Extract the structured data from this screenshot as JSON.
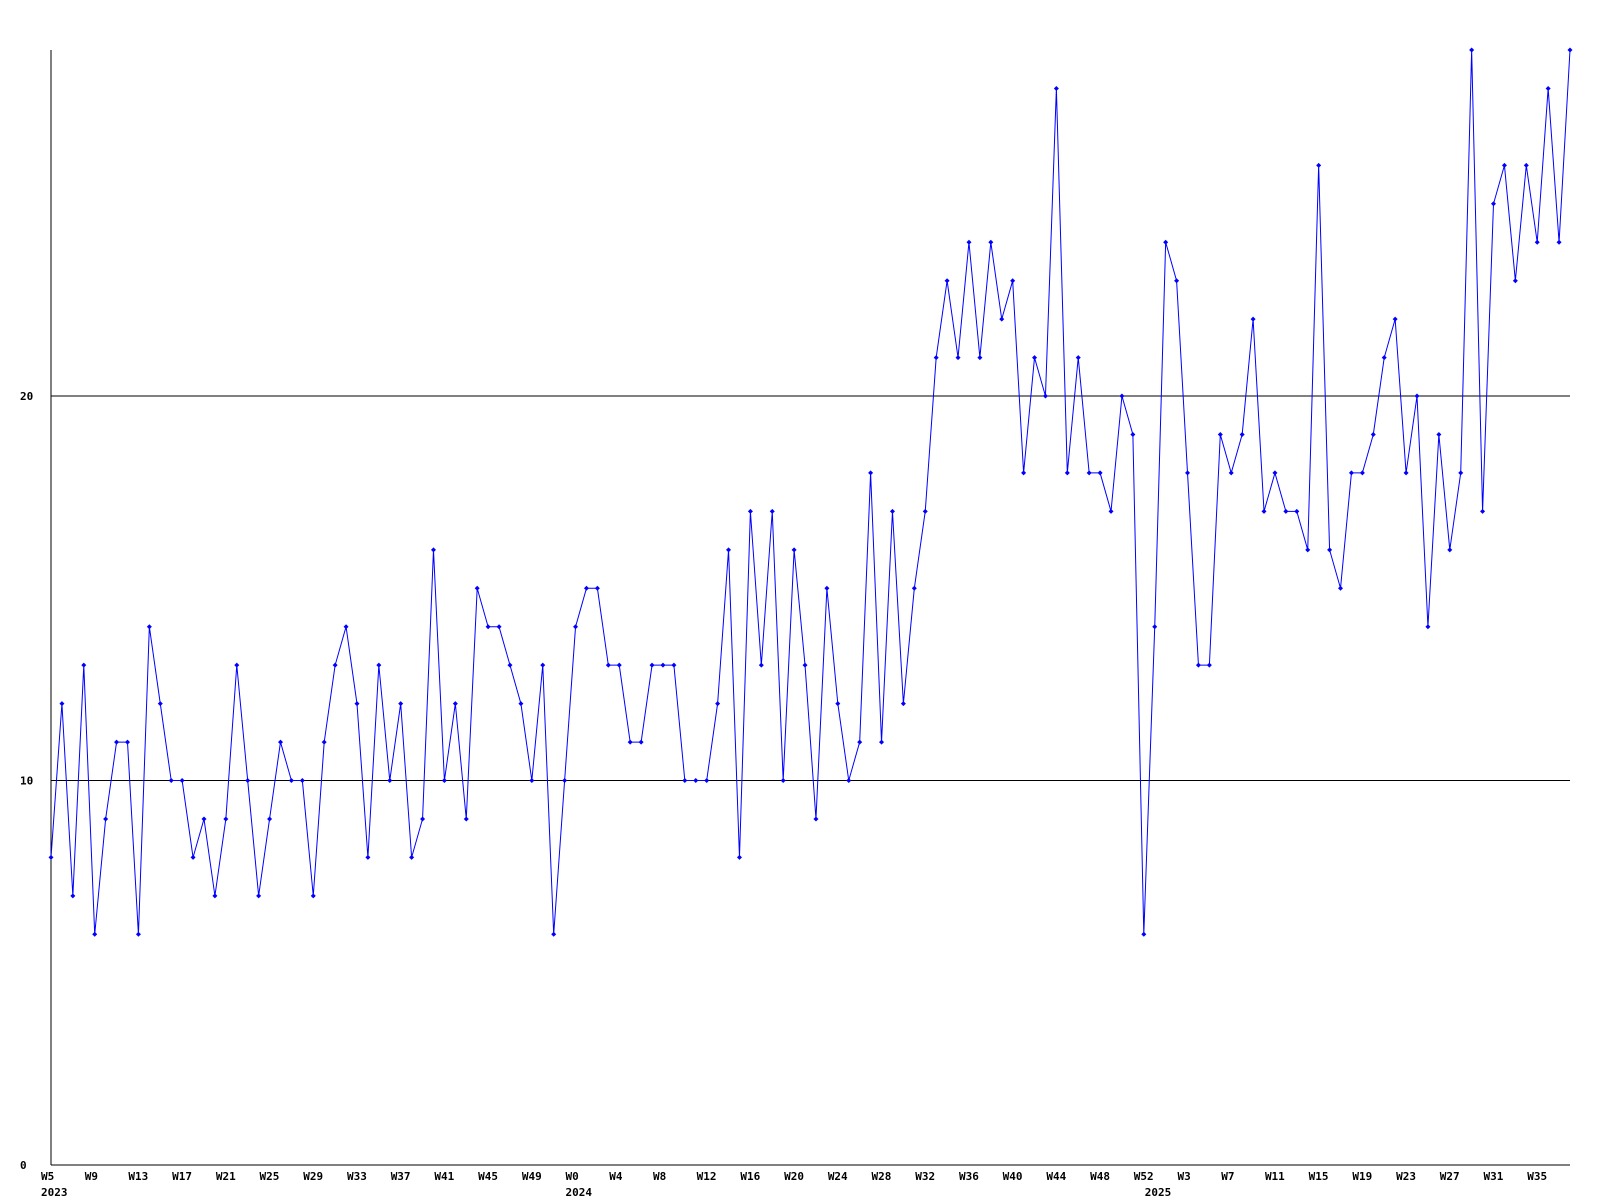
{
  "chart_data": {
    "type": "line",
    "categories": [
      "W5",
      null,
      null,
      null,
      "W9",
      null,
      null,
      null,
      "W13",
      null,
      null,
      null,
      "W17",
      null,
      null,
      null,
      "W21",
      null,
      null,
      null,
      "W25",
      null,
      null,
      null,
      "W29",
      null,
      null,
      null,
      "W33",
      null,
      null,
      null,
      "W37",
      null,
      null,
      null,
      "W41",
      null,
      null,
      null,
      "W45",
      null,
      null,
      null,
      "W49",
      null,
      null,
      null,
      "W0",
      null,
      null,
      null,
      "W4",
      null,
      null,
      null,
      "W8",
      null,
      null,
      null,
      "W12",
      null,
      null,
      null,
      "W16",
      null,
      null,
      null,
      "W20",
      null,
      null,
      null,
      "W24",
      null,
      null,
      null,
      "W28",
      null,
      null,
      null,
      "W32",
      null,
      null,
      null,
      "W36",
      null,
      null,
      null,
      "W40",
      null,
      null,
      null,
      "W44",
      null,
      null,
      null,
      "W48",
      null,
      null,
      null,
      "W52",
      null,
      null,
      null,
      "W3",
      null,
      null,
      null,
      "W7",
      null,
      null,
      null,
      "W11",
      null,
      null,
      null,
      "W15",
      null,
      null,
      null,
      "W19",
      null,
      null,
      null,
      "W23",
      null,
      null,
      null,
      "W27",
      null,
      null,
      null,
      "W31",
      null,
      null,
      null,
      "W35",
      null,
      null,
      null
    ],
    "year_labels": [
      "2023",
      null,
      null,
      null,
      null,
      null,
      null,
      null,
      null,
      null,
      null,
      null,
      null,
      null,
      null,
      null,
      null,
      null,
      null,
      null,
      null,
      null,
      null,
      null,
      null,
      null,
      null,
      null,
      null,
      null,
      null,
      null,
      null,
      null,
      null,
      null,
      null,
      null,
      null,
      null,
      null,
      null,
      null,
      null,
      null,
      null,
      null,
      null,
      "2024",
      null,
      null,
      null,
      null,
      null,
      null,
      null,
      null,
      null,
      null,
      null,
      null,
      null,
      null,
      null,
      null,
      null,
      null,
      null,
      null,
      null,
      null,
      null,
      null,
      null,
      null,
      null,
      null,
      null,
      null,
      null,
      null,
      null,
      null,
      null,
      null,
      null,
      null,
      null,
      null,
      null,
      null,
      null,
      null,
      null,
      null,
      null,
      null,
      null,
      null,
      null,
      null,
      "2025",
      null,
      null,
      null,
      null,
      null,
      null,
      null,
      null,
      null,
      null,
      null,
      null,
      null,
      null,
      null,
      null,
      null,
      null,
      null,
      null,
      null,
      null,
      null,
      null,
      null,
      null,
      null,
      null,
      null,
      null,
      null,
      null,
      null,
      null,
      null,
      null,
      null
    ],
    "series": [
      {
        "color": "#0000ff",
        "values": [
          8,
          12,
          7,
          13,
          6,
          9,
          11,
          11,
          6,
          14,
          12,
          10,
          10,
          8,
          9,
          7,
          9,
          13,
          10,
          7,
          9,
          11,
          10,
          10,
          7,
          11,
          13,
          14,
          12,
          8,
          13,
          10,
          12,
          8,
          9,
          16,
          10,
          12,
          9,
          15,
          14,
          14,
          13,
          12,
          10,
          13,
          6,
          10,
          14,
          15,
          15,
          13,
          13,
          11,
          11,
          13,
          13,
          13,
          10,
          10,
          10,
          12,
          16,
          8,
          17,
          13,
          17,
          10,
          16,
          13,
          9,
          15,
          12,
          10,
          11,
          18,
          11,
          17,
          12,
          15,
          17,
          21,
          23,
          21,
          24,
          21,
          24,
          22,
          23,
          18,
          21,
          20,
          28,
          18,
          21,
          18,
          18,
          17,
          20,
          19,
          6,
          14,
          24,
          23,
          18,
          13,
          13,
          19,
          18,
          19,
          22,
          17,
          18,
          17,
          17,
          16,
          26,
          16,
          15,
          18,
          18,
          19,
          21,
          22,
          18,
          20,
          14,
          19,
          16,
          18,
          29,
          17,
          25,
          26,
          23,
          26,
          24,
          28,
          24,
          29
        ]
      }
    ],
    "ylim": [
      0,
      29
    ],
    "yticks": [
      0,
      10,
      20
    ],
    "grid": true
  }
}
